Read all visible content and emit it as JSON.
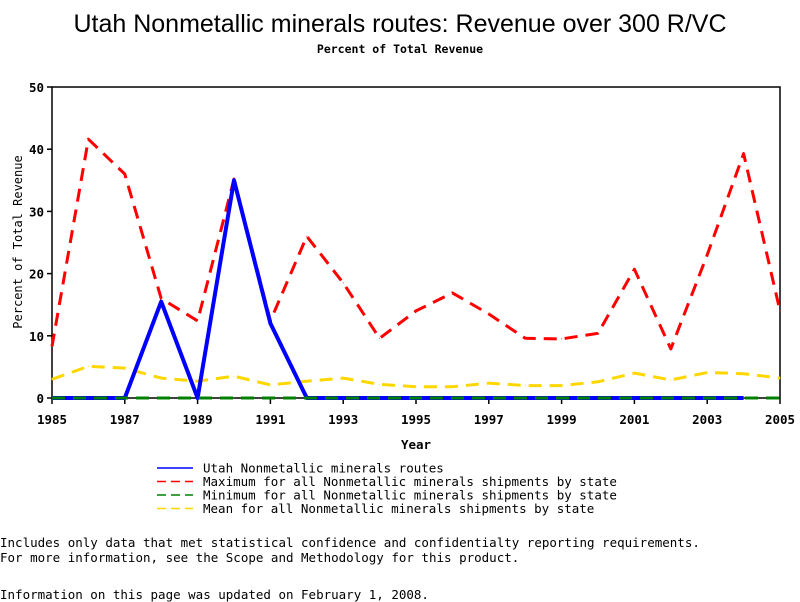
{
  "chart_data": {
    "type": "line",
    "title": "Utah Nonmetallic minerals routes: Revenue over 300 R/VC",
    "subtitle": "Percent of Total Revenue",
    "xlabel": "Year",
    "ylabel": "Percent of Total Revenue",
    "xlim": [
      1985,
      2005
    ],
    "ylim": [
      0,
      50
    ],
    "xticks": [
      1985,
      1987,
      1989,
      1991,
      1993,
      1995,
      1997,
      1999,
      2001,
      2003,
      2005
    ],
    "yticks": [
      0,
      10,
      20,
      30,
      40,
      50
    ],
    "grid": false,
    "legend_placement": "bottom",
    "x": [
      1985,
      1986,
      1987,
      1988,
      1989,
      1990,
      1991,
      1992,
      1993,
      1994,
      1995,
      1996,
      1997,
      1998,
      1999,
      2000,
      2001,
      2002,
      2003,
      2004,
      2005
    ],
    "series": [
      {
        "name": "Utah Nonmetallic minerals routes",
        "color": "#0000ff",
        "style": "solid",
        "values": [
          0,
          0,
          0,
          15.5,
          0,
          35,
          12,
          0,
          0,
          0,
          0,
          0,
          0,
          0,
          0,
          0,
          0,
          0,
          0,
          0,
          null
        ]
      },
      {
        "name": "Maximum for all Nonmetallic minerals shipments by state",
        "color": "#ff0000",
        "style": "dashed",
        "values": [
          8.3,
          41.6,
          36,
          16,
          12.4,
          35.2,
          12.4,
          26,
          18.5,
          9.6,
          14,
          16.9,
          13.5,
          9.6,
          9.5,
          10.4,
          20.7,
          7.9,
          23,
          39.3,
          14
        ]
      },
      {
        "name": "Minimum for all Nonmetallic minerals shipments by state",
        "color": "#008000",
        "style": "dashed",
        "values": [
          0,
          0,
          0,
          0,
          0,
          0,
          0,
          0,
          0,
          0,
          0,
          0,
          0,
          0,
          0,
          0,
          0,
          0,
          0,
          0,
          0
        ]
      },
      {
        "name": "Mean for all Nonmetallic minerals shipments by state",
        "color": "#ffd700",
        "style": "dashed",
        "values": [
          3,
          5.1,
          4.8,
          3.2,
          2.7,
          3.5,
          2.1,
          2.7,
          3.2,
          2.2,
          1.8,
          1.8,
          2.4,
          2.0,
          2.0,
          2.6,
          4.0,
          2.9,
          4.1,
          3.9,
          3.2
        ]
      }
    ]
  },
  "notes": {
    "line1": "Includes only data that met statistical confidence and confidentialty reporting requirements.",
    "line2": "For more information, see the Scope and Methodology for this product.",
    "updated": "Information on this page was updated on February 1, 2008."
  }
}
